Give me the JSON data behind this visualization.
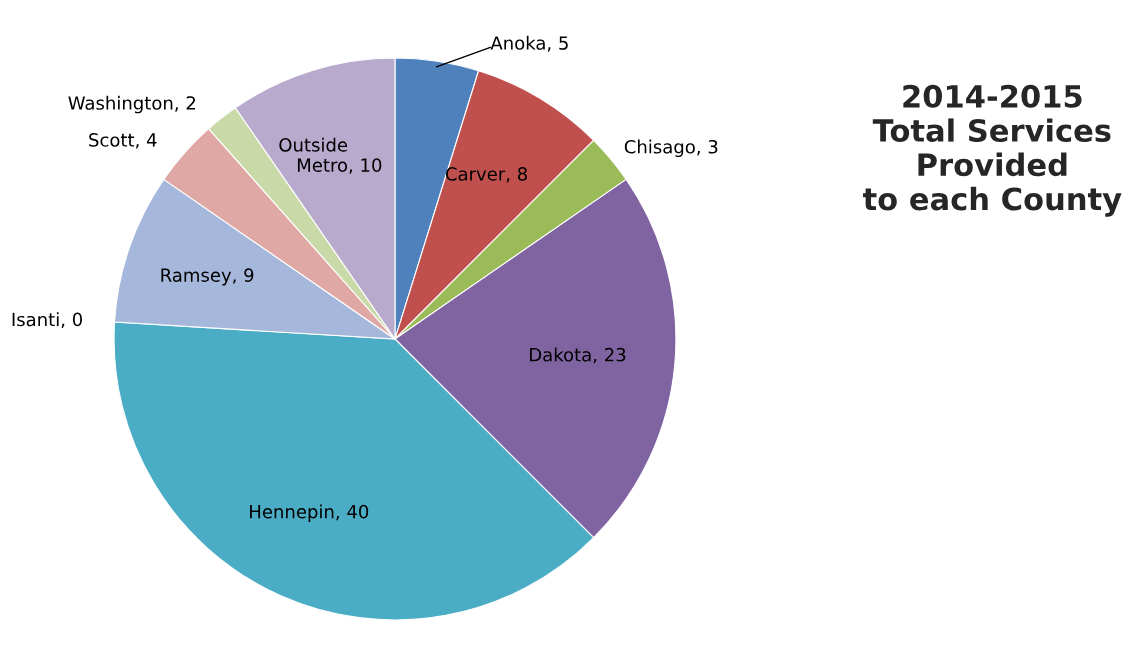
{
  "chart_data": {
    "type": "pie",
    "title": "2014-2015\nTotal Services\nProvided\nto each County",
    "categories": [
      "Anoka",
      "Carver",
      "Chisago",
      "Dakota",
      "Hennepin",
      "Isanti",
      "Ramsey",
      "Scott",
      "Washington",
      "Outside Metro"
    ],
    "values": [
      5,
      8,
      3,
      23,
      40,
      0,
      9,
      4,
      2,
      10
    ],
    "colors": [
      "#4f81bd",
      "#c0504d",
      "#9bbb59",
      "#8064a2",
      "#4bacc6",
      "#f79646",
      "#a5b8db",
      "#dfa8a4",
      "#c9daa8",
      "#b8aacc"
    ],
    "value_labels": [
      ", 5",
      ", 8",
      ", 3",
      ", 23",
      ", 40",
      ", 0",
      ", 9",
      ", 4",
      ", 2",
      ", 10"
    ],
    "legend": false
  }
}
